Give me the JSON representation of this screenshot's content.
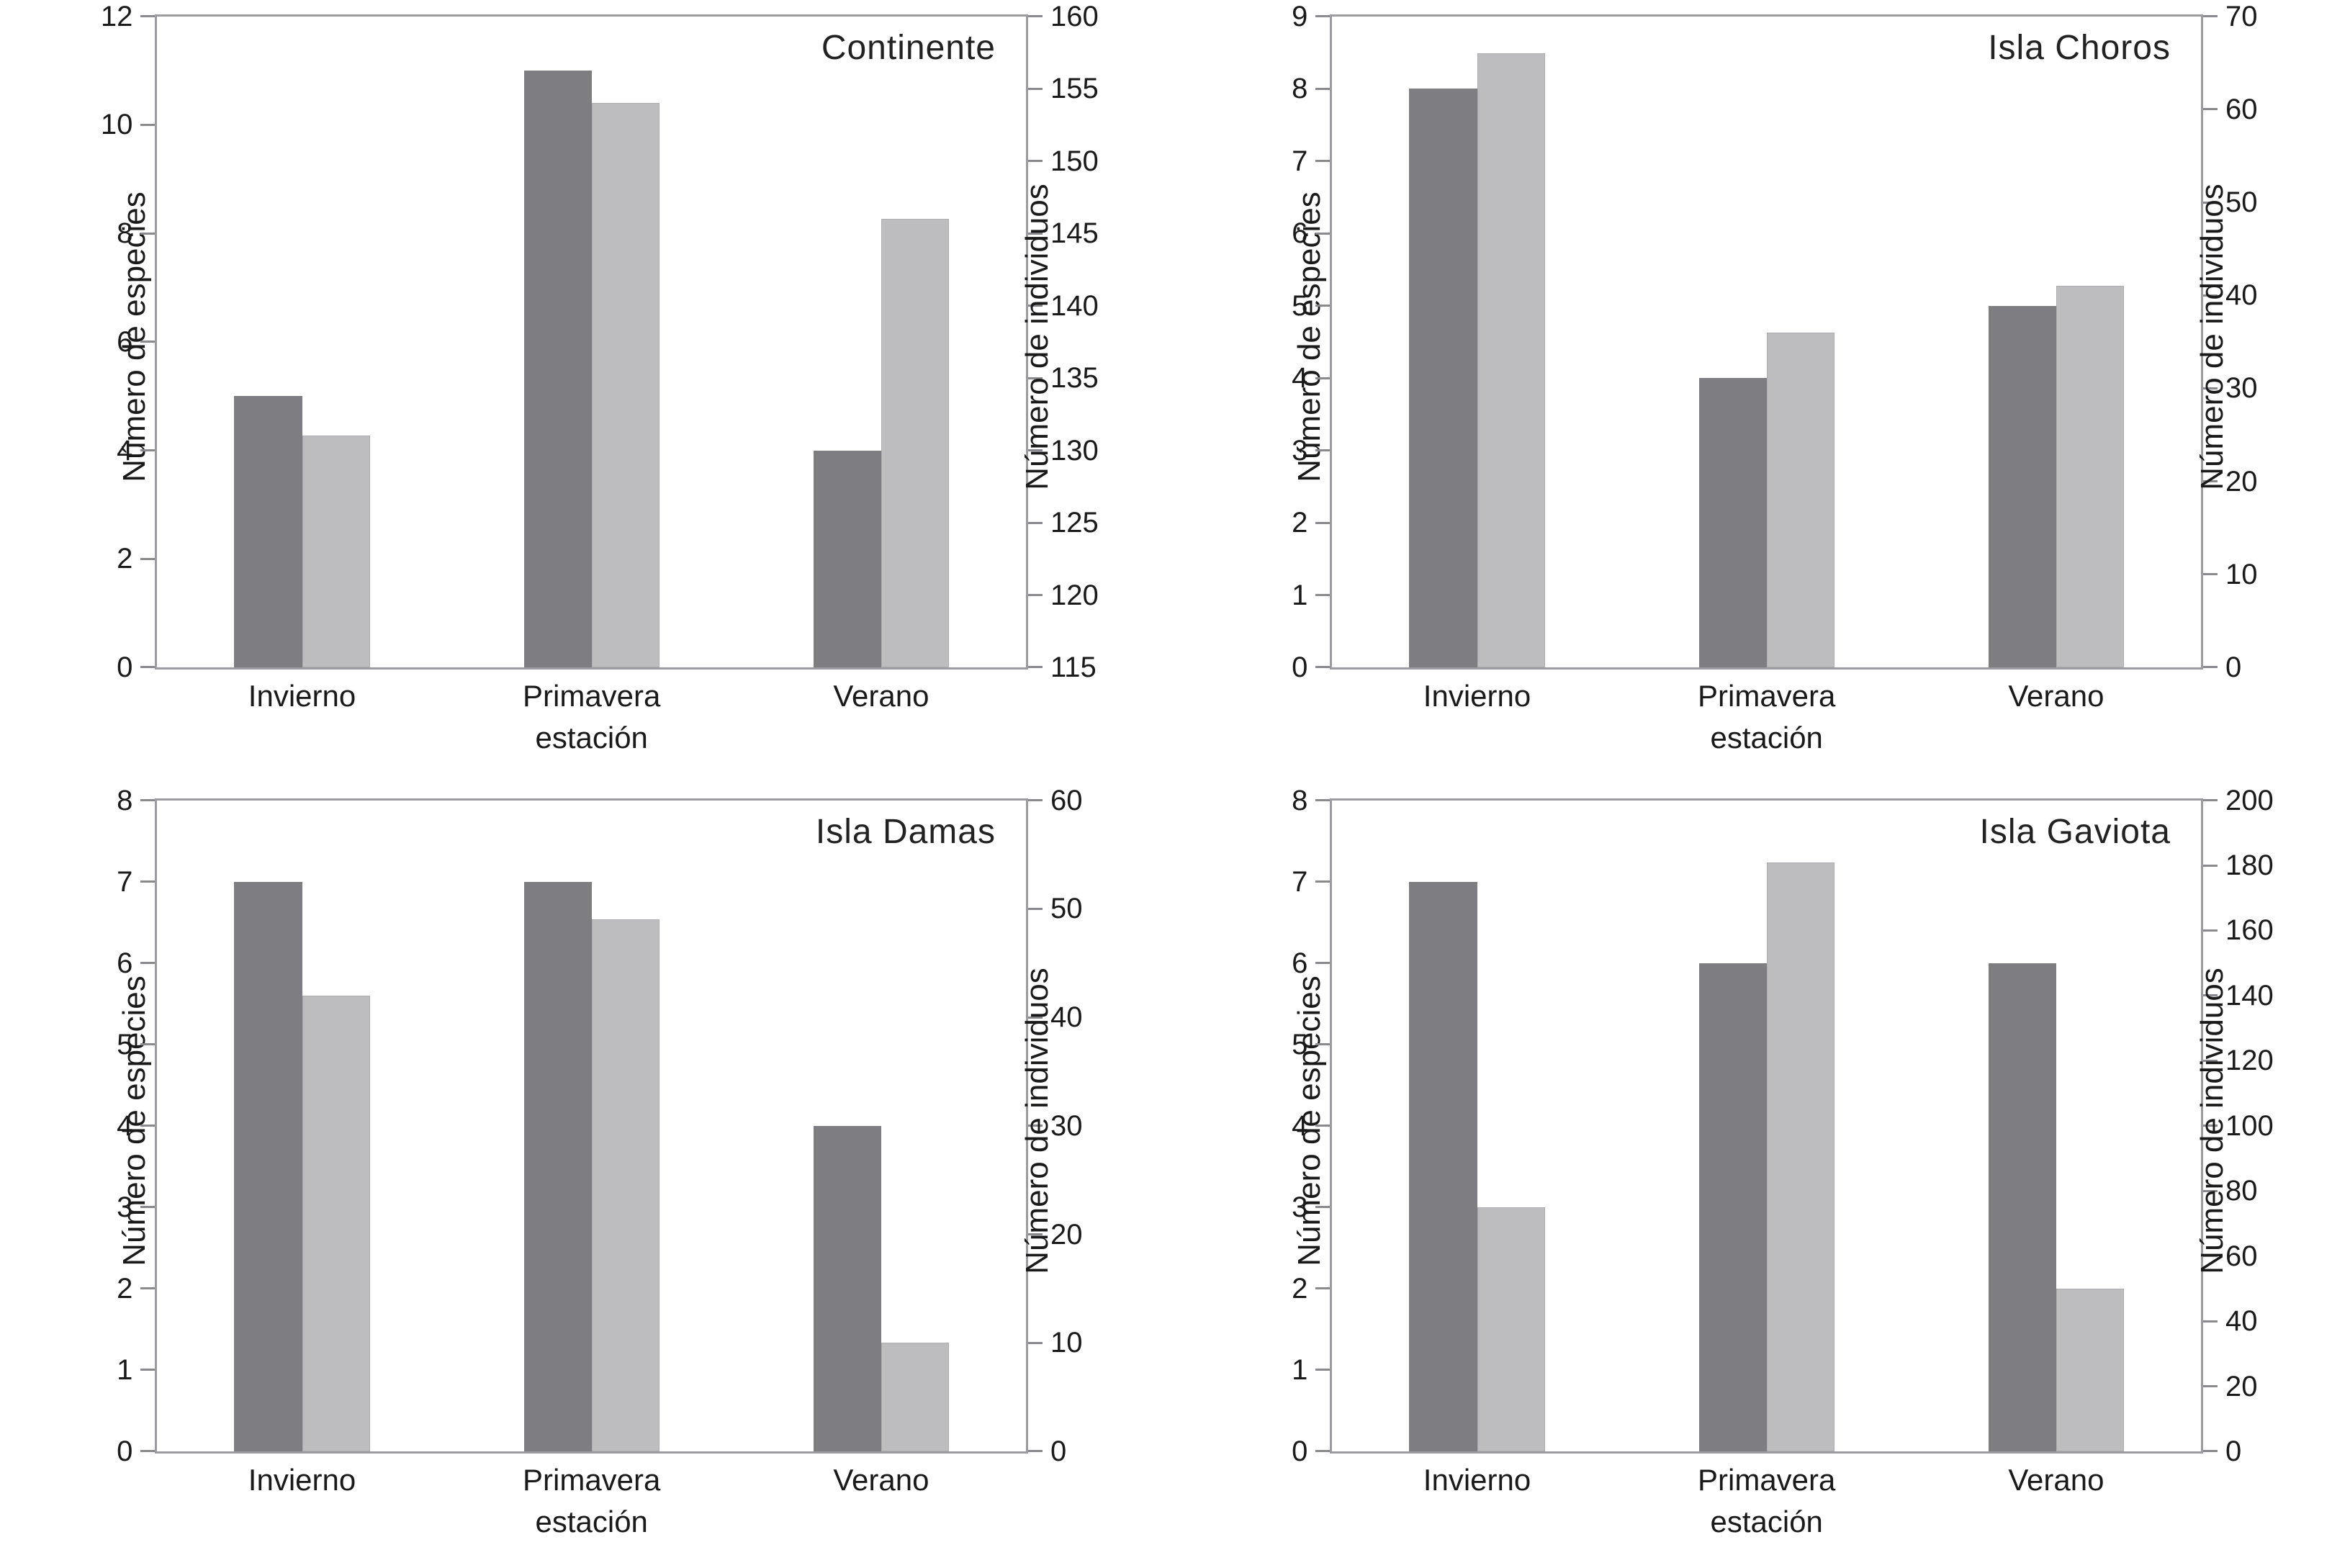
{
  "figure": {
    "left_axis_label": "Número de especies",
    "right_axis_label": "Número de individuos",
    "x_axis_label": "estación",
    "categories": [
      "Invierno",
      "Primavera",
      "Verano"
    ],
    "colors": {
      "species_bar": "#7d7d82",
      "individuals_bar": "#bdbdbf",
      "individuals_bar_border": "#aeaeb1",
      "spine": "#9c9ca0",
      "tick": "#8a8a8e",
      "text": "#1a1a1a"
    }
  },
  "chart_data": [
    {
      "type": "bar",
      "title": "Continente",
      "categories": [
        "Invierno",
        "Primavera",
        "Verano"
      ],
      "xlabel": "estación",
      "left_axis": {
        "label": "Número de especies",
        "min": 0,
        "max": 12,
        "step": 2
      },
      "right_axis": {
        "label": "Número de individuos",
        "min": 115,
        "max": 160,
        "step": 5
      },
      "series": [
        {
          "name": "Número de especies",
          "axis": "left",
          "values": [
            5,
            11,
            4
          ]
        },
        {
          "name": "Número de individuos",
          "axis": "right",
          "values": [
            131,
            154,
            146
          ]
        }
      ]
    },
    {
      "type": "bar",
      "title": "Isla Choros",
      "categories": [
        "Invierno",
        "Primavera",
        "Verano"
      ],
      "xlabel": "estación",
      "left_axis": {
        "label": "Número de especies",
        "min": 0,
        "max": 9,
        "step": 1
      },
      "right_axis": {
        "label": "Número de individuos",
        "min": 0,
        "max": 70,
        "step": 10
      },
      "series": [
        {
          "name": "Número de especies",
          "axis": "left",
          "values": [
            8,
            4,
            5
          ]
        },
        {
          "name": "Número de individuos",
          "axis": "right",
          "values": [
            66,
            36,
            41
          ]
        }
      ]
    },
    {
      "type": "bar",
      "title": "Isla Damas",
      "categories": [
        "Invierno",
        "Primavera",
        "Verano"
      ],
      "xlabel": "estación",
      "left_axis": {
        "label": "Número de especies",
        "min": 0,
        "max": 8,
        "step": 1
      },
      "right_axis": {
        "label": "Número de individuos",
        "min": 0,
        "max": 60,
        "step": 10
      },
      "series": [
        {
          "name": "Número de especies",
          "axis": "left",
          "values": [
            7,
            7,
            4
          ]
        },
        {
          "name": "Número de individuos",
          "axis": "right",
          "values": [
            42,
            49,
            10
          ]
        }
      ]
    },
    {
      "type": "bar",
      "title": "Isla Gaviota",
      "categories": [
        "Invierno",
        "Primavera",
        "Verano"
      ],
      "xlabel": "estación",
      "left_axis": {
        "label": "Número de especies",
        "min": 0,
        "max": 8,
        "step": 1
      },
      "right_axis": {
        "label": "Número de individuos",
        "min": 0,
        "max": 200,
        "step": 20
      },
      "series": [
        {
          "name": "Número de especies",
          "axis": "left",
          "values": [
            7,
            6,
            6
          ]
        },
        {
          "name": "Número de individuos",
          "axis": "right",
          "values": [
            75,
            181,
            50
          ]
        }
      ]
    }
  ]
}
